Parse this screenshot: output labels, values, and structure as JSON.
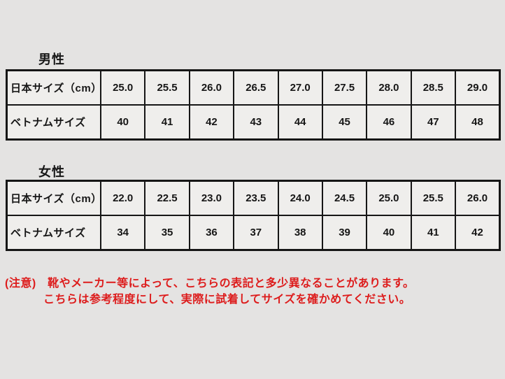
{
  "page": {
    "background_color": "#e4e3e2",
    "table_border_color": "#161616",
    "notice_color": "#dd1c1c"
  },
  "men": {
    "title": "男性",
    "row_headers": [
      "日本サイズ（cm）",
      "ベトナムサイズ"
    ],
    "japan_sizes": [
      "25.0",
      "25.5",
      "26.0",
      "26.5",
      "27.0",
      "27.5",
      "28.0",
      "28.5",
      "29.0"
    ],
    "vietnam_sizes": [
      "40",
      "41",
      "42",
      "43",
      "44",
      "45",
      "46",
      "47",
      "48"
    ]
  },
  "women": {
    "title": "女性",
    "row_headers": [
      "日本サイズ（cm）",
      "ベトナムサイズ"
    ],
    "japan_sizes": [
      "22.0",
      "22.5",
      "23.0",
      "23.5",
      "24.0",
      "24.5",
      "25.0",
      "25.5",
      "26.0"
    ],
    "vietnam_sizes": [
      "34",
      "35",
      "36",
      "37",
      "38",
      "39",
      "40",
      "41",
      "42"
    ]
  },
  "notice": {
    "line1": "(注意)　靴やメーカー等によって、こちらの表記と多少異なることがあります。",
    "line2": "こちらは参考程度にして、実際に試着してサイズを確かめてください。"
  },
  "chart_data": [
    {
      "type": "table",
      "title": "男性",
      "rows": [
        {
          "label": "日本サイズ（cm）",
          "values": [
            25.0,
            25.5,
            26.0,
            26.5,
            27.0,
            27.5,
            28.0,
            28.5,
            29.0
          ]
        },
        {
          "label": "ベトナムサイズ",
          "values": [
            40,
            41,
            42,
            43,
            44,
            45,
            46,
            47,
            48
          ]
        }
      ]
    },
    {
      "type": "table",
      "title": "女性",
      "rows": [
        {
          "label": "日本サイズ（cm）",
          "values": [
            22.0,
            22.5,
            23.0,
            23.5,
            24.0,
            24.5,
            25.0,
            25.5,
            26.0
          ]
        },
        {
          "label": "ベトナムサイズ",
          "values": [
            34,
            35,
            36,
            37,
            38,
            39,
            40,
            41,
            42
          ]
        }
      ]
    }
  ]
}
